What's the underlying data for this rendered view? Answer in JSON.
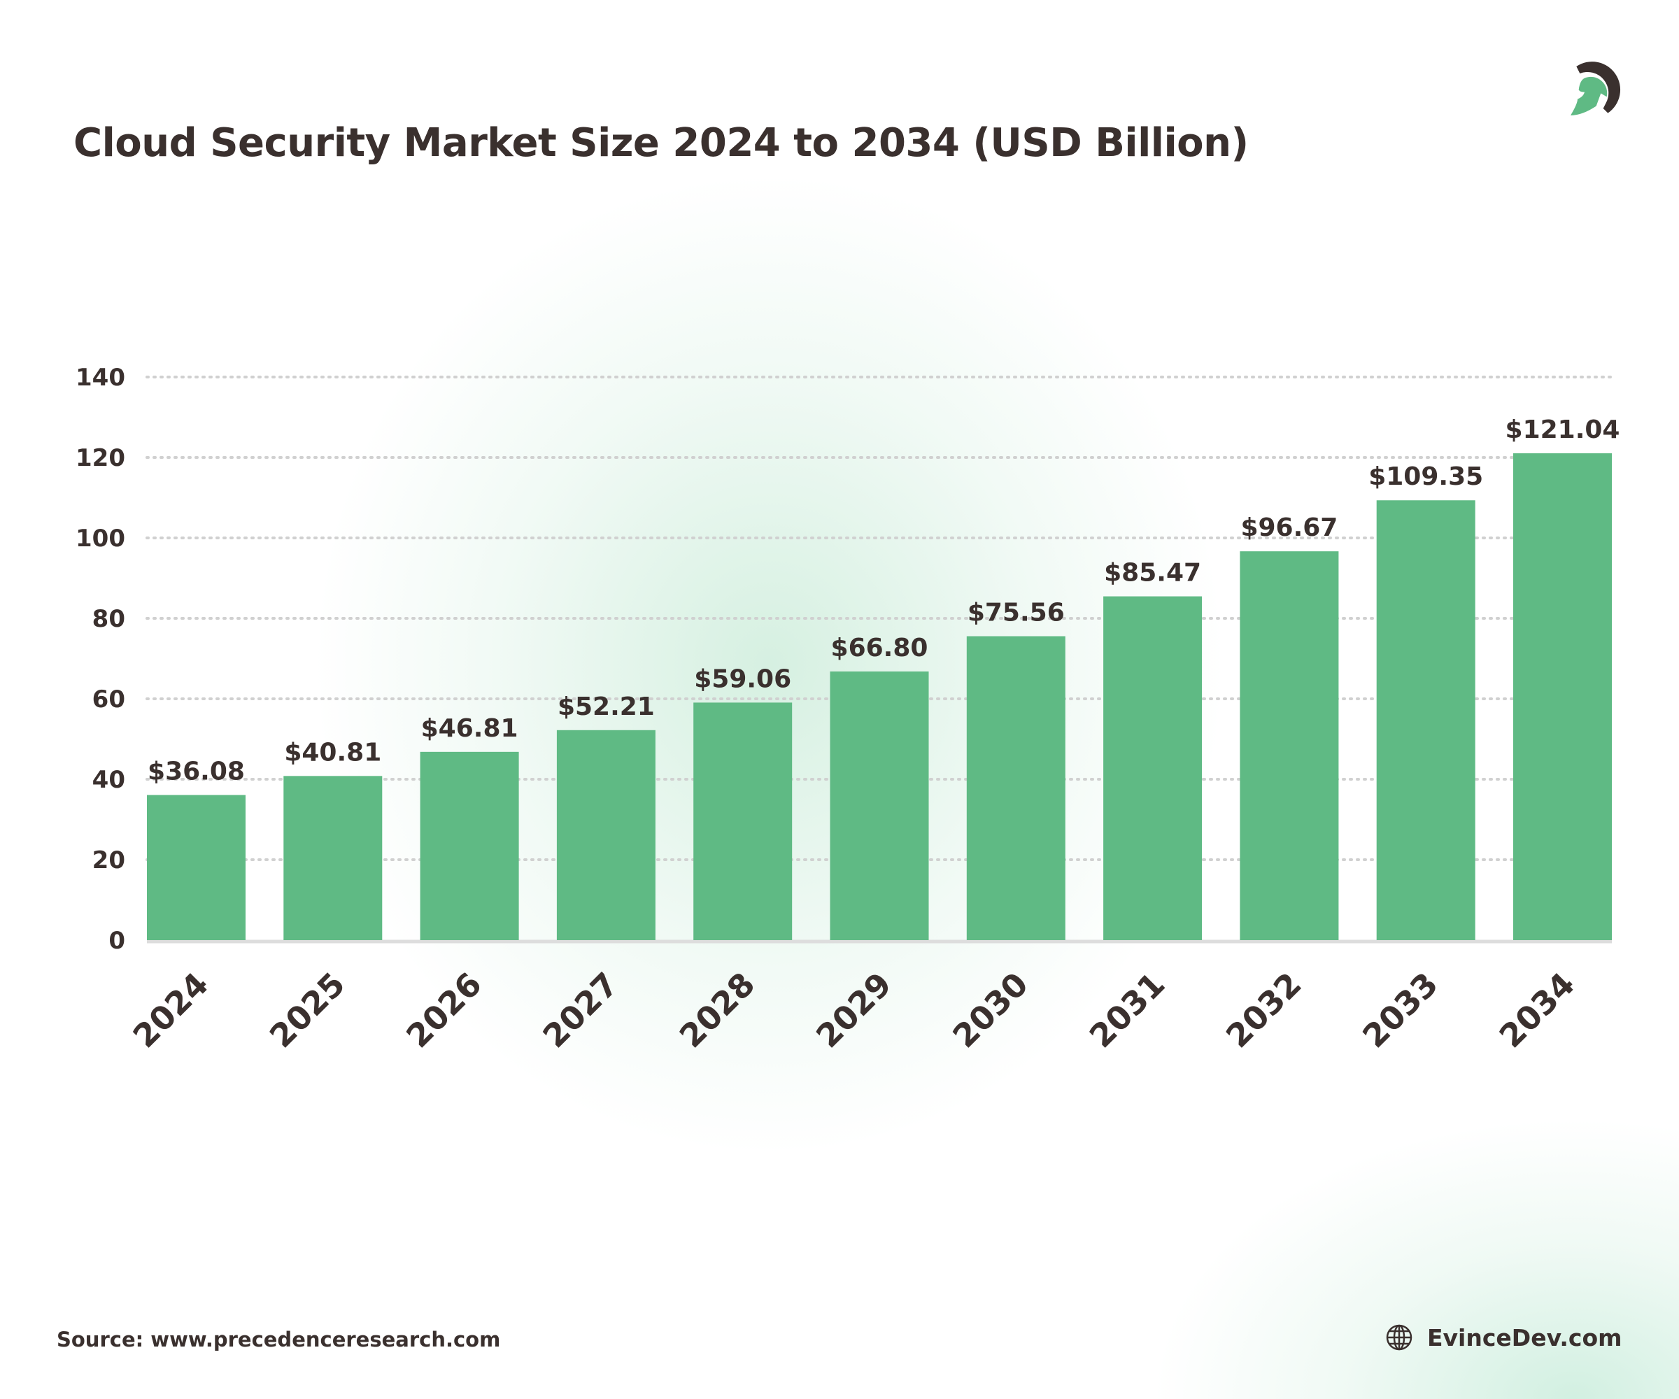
{
  "title": "Cloud Security Market Size 2024 to 2034 (USD Billion)",
  "source": "Source: www.precedenceresearch.com",
  "site": {
    "label": "EvinceDev.com",
    "icon": "globe-icon"
  },
  "logo": {
    "icon": "helmet-logo-icon"
  },
  "colors": {
    "bar": "#5fba84",
    "text": "#3a302e",
    "grid": "#d0d0d0"
  },
  "chart_data": {
    "type": "bar",
    "title": "Cloud Security Market Size 2024 to 2034 (USD Billion)",
    "categories": [
      "2024",
      "2025",
      "2026",
      "2027",
      "2028",
      "2029",
      "2030",
      "2031",
      "2032",
      "2033",
      "2034"
    ],
    "values": [
      36.08,
      40.81,
      46.81,
      52.21,
      59.06,
      66.8,
      75.56,
      85.47,
      96.67,
      109.35,
      121.04
    ],
    "data_labels": [
      "$36.08",
      "$40.81",
      "$46.81",
      "$52.21",
      "$59.06",
      "$66.80",
      "$75.56",
      "$85.47",
      "$96.67",
      "$109.35",
      "$121.04"
    ],
    "yticks": [
      0,
      20,
      40,
      60,
      80,
      100,
      120,
      140
    ],
    "ylim": [
      0,
      140
    ],
    "grid": true,
    "xlabel": "",
    "ylabel": ""
  }
}
